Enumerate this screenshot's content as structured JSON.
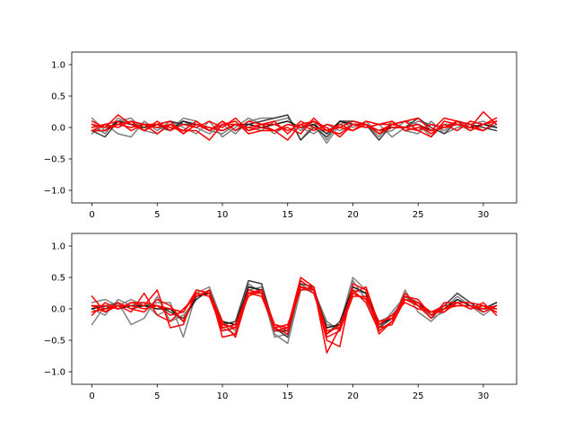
{
  "chart_data": [
    {
      "type": "line",
      "xlim": [
        -1.55,
        32.55
      ],
      "ylim": [
        -1.2,
        1.2
      ],
      "x_ticks": [
        0,
        5,
        10,
        15,
        20,
        25,
        30
      ],
      "x_tick_labels": [
        "0",
        "5",
        "10",
        "15",
        "20",
        "25",
        "30"
      ],
      "y_ticks": [
        -1.0,
        -0.5,
        0.0,
        0.5,
        1.0
      ],
      "y_tick_labels": [
        "−1.0",
        "−0.5",
        "0.0",
        "0.5",
        "1.0"
      ],
      "grid": false,
      "x": [
        0,
        1,
        2,
        3,
        4,
        5,
        6,
        7,
        8,
        9,
        10,
        11,
        12,
        13,
        14,
        15,
        16,
        17,
        18,
        19,
        20,
        21,
        22,
        23,
        24,
        25,
        26,
        27,
        28,
        29,
        30,
        31
      ],
      "series": [
        {
          "color": "#808080",
          "values": [
            0.15,
            -0.05,
            0.1,
            0.15,
            -0.05,
            -0.1,
            0.05,
            0.1,
            0.0,
            -0.1,
            0.05,
            -0.1,
            0.1,
            0.15,
            0.15,
            0.2,
            -0.2,
            0.05,
            -0.25,
            0.05,
            0.1,
            0.05,
            -0.15,
            0.1,
            -0.05,
            -0.1,
            0.1,
            -0.1,
            0.0,
            0.05,
            0.1,
            0.0
          ]
        },
        {
          "color": "#808080",
          "values": [
            0.05,
            -0.1,
            0.15,
            0.05,
            0.05,
            0.0,
            -0.05,
            0.15,
            0.1,
            -0.05,
            -0.1,
            0.05,
            0.0,
            -0.05,
            0.1,
            0.15,
            -0.05,
            0.1,
            -0.2,
            0.1,
            0.0,
            0.1,
            -0.1,
            -0.05,
            0.1,
            0.05,
            -0.15,
            0.05,
            0.05,
            -0.05,
            0.05,
            0.0
          ]
        },
        {
          "color": "#808080",
          "values": [
            -0.1,
            0.05,
            -0.1,
            -0.15,
            0.1,
            -0.05,
            0.1,
            0.0,
            -0.1,
            0.1,
            -0.15,
            0.0,
            0.15,
            0.05,
            -0.1,
            0.05,
            0.0,
            -0.1,
            0.05,
            -0.05,
            0.05,
            0.0,
            0.05,
            -0.15,
            0.0,
            0.1,
            0.05,
            -0.05,
            0.1,
            0.0,
            -0.05,
            0.05
          ]
        },
        {
          "color": "#404040",
          "values": [
            -0.05,
            -0.15,
            0.1,
            0.05,
            -0.05,
            0.05,
            0.1,
            0.05,
            0.05,
            -0.05,
            0.1,
            -0.05,
            0.05,
            0.1,
            0.15,
            0.2,
            -0.2,
            0.0,
            -0.15,
            0.1,
            0.1,
            0.05,
            -0.2,
            0.05,
            0.0,
            0.15,
            0.0,
            -0.1,
            0.1,
            0.05,
            0.0,
            -0.05
          ]
        },
        {
          "color": "#1a1a1a",
          "values": [
            -0.05,
            -0.05,
            0.1,
            0.05,
            0.0,
            0.05,
            -0.05,
            0.1,
            0.05,
            0.0,
            -0.05,
            0.05,
            0.05,
            0.0,
            0.05,
            0.1,
            0.0,
            0.05,
            -0.1,
            0.1,
            0.05,
            0.05,
            -0.05,
            0.0,
            0.0,
            0.05,
            -0.05,
            0.0,
            0.05,
            0.0,
            0.05,
            0.0
          ]
        },
        {
          "color": "#ff0000",
          "values": [
            0.1,
            0.0,
            0.2,
            0.05,
            -0.05,
            0.1,
            -0.05,
            0.05,
            0.0,
            0.1,
            0.0,
            0.15,
            -0.05,
            0.05,
            -0.05,
            0.0,
            -0.1,
            0.15,
            -0.05,
            0.0,
            -0.05,
            0.1,
            0.05,
            0.05,
            0.1,
            -0.05,
            -0.15,
            0.1,
            0.05,
            0.0,
            0.25,
            0.05
          ]
        },
        {
          "color": "#ff0000",
          "values": [
            -0.05,
            0.05,
            0.1,
            -0.05,
            0.05,
            0.05,
            0.1,
            -0.1,
            0.05,
            -0.05,
            0.1,
            -0.05,
            0.1,
            0.05,
            0.1,
            -0.1,
            0.1,
            0.0,
            -0.05,
            0.05,
            -0.05,
            0.05,
            -0.1,
            0.05,
            0.1,
            0.15,
            -0.05,
            0.15,
            0.1,
            0.05,
            -0.05,
            0.1
          ]
        },
        {
          "color": "#ff0000",
          "values": [
            0.0,
            0.05,
            0.0,
            0.1,
            0.05,
            -0.1,
            0.05,
            -0.05,
            0.1,
            -0.05,
            0.05,
            0.1,
            -0.1,
            -0.05,
            -0.05,
            -0.2,
            0.05,
            0.1,
            0.0,
            -0.15,
            0.05,
            0.0,
            0.05,
            0.1,
            -0.05,
            0.0,
            -0.05,
            0.0,
            0.1,
            -0.05,
            0.05,
            0.15
          ]
        },
        {
          "color": "#ff0000",
          "values": [
            -0.05,
            -0.05,
            0.05,
            0.1,
            -0.05,
            0.05,
            0.0,
            -0.05,
            -0.05,
            -0.2,
            0.05,
            0.05,
            -0.05,
            0.0,
            -0.05,
            0.05,
            0.0,
            0.1,
            -0.05,
            -0.1,
            0.05,
            0.05,
            -0.1,
            0.0,
            0.0,
            0.05,
            -0.1,
            0.05,
            -0.05,
            0.1,
            0.05,
            0.1
          ]
        },
        {
          "color": "#ff0000",
          "values": [
            0.05,
            0.0,
            0.05,
            0.0,
            0.05,
            0.0,
            0.05,
            -0.1,
            0.05,
            0.0,
            -0.05,
            0.05,
            0.0,
            0.05,
            0.05,
            -0.05,
            0.05,
            -0.05,
            0.05,
            0.0,
            0.1,
            0.05,
            -0.05,
            0.05,
            0.0,
            -0.05,
            0.05,
            0.0,
            0.05,
            0.0,
            -0.05,
            0.1
          ]
        }
      ]
    },
    {
      "type": "line",
      "xlim": [
        -1.55,
        32.55
      ],
      "ylim": [
        -1.2,
        1.2
      ],
      "x_ticks": [
        0,
        5,
        10,
        15,
        20,
        25,
        30
      ],
      "x_tick_labels": [
        "0",
        "5",
        "10",
        "15",
        "20",
        "25",
        "30"
      ],
      "y_ticks": [
        -1.0,
        -0.5,
        0.0,
        0.5,
        1.0
      ],
      "y_tick_labels": [
        "−1.0",
        "−0.5",
        "0.0",
        "0.5",
        "1.0"
      ],
      "grid": false,
      "x": [
        0,
        1,
        2,
        3,
        4,
        5,
        6,
        7,
        8,
        9,
        10,
        11,
        12,
        13,
        14,
        15,
        16,
        17,
        18,
        19,
        20,
        21,
        22,
        23,
        24,
        25,
        26,
        27,
        28,
        29,
        30,
        31
      ],
      "series": [
        {
          "color": "#808080",
          "values": [
            0.1,
            0.15,
            0.05,
            0.15,
            0.05,
            0.1,
            0.1,
            -0.45,
            0.25,
            0.35,
            -0.2,
            -0.35,
            0.4,
            0.25,
            -0.4,
            -0.55,
            0.3,
            0.3,
            -0.3,
            -0.25,
            0.5,
            0.3,
            -0.35,
            -0.2,
            0.3,
            -0.05,
            -0.2,
            0.0,
            0.2,
            0.05,
            -0.1,
            0.05
          ]
        },
        {
          "color": "#808080",
          "values": [
            -0.25,
            0.05,
            0.1,
            -0.25,
            -0.15,
            0.2,
            -0.2,
            -0.1,
            0.15,
            0.3,
            -0.3,
            -0.4,
            0.35,
            0.3,
            -0.45,
            -0.4,
            0.4,
            0.25,
            -0.25,
            -0.3,
            0.45,
            0.15,
            -0.3,
            -0.05,
            0.2,
            0.05,
            -0.15,
            0.05,
            0.1,
            0.0,
            0.05,
            -0.05
          ]
        },
        {
          "color": "#808080",
          "values": [
            0.0,
            -0.1,
            0.15,
            0.05,
            0.1,
            -0.1,
            0.0,
            -0.2,
            0.2,
            0.25,
            -0.25,
            -0.3,
            0.3,
            0.35,
            -0.35,
            -0.3,
            0.35,
            0.3,
            -0.2,
            -0.35,
            0.3,
            0.25,
            -0.2,
            -0.1,
            0.15,
            0.1,
            -0.15,
            -0.05,
            0.15,
            0.05,
            0.0,
            0.0
          ]
        },
        {
          "color": "#404040",
          "values": [
            0.05,
            0.0,
            0.1,
            0.0,
            0.05,
            0.05,
            -0.05,
            -0.15,
            0.15,
            0.3,
            -0.25,
            -0.2,
            0.45,
            0.4,
            -0.3,
            -0.45,
            0.4,
            0.35,
            -0.4,
            -0.2,
            0.35,
            0.25,
            -0.3,
            -0.15,
            0.2,
            0.1,
            -0.1,
            0.05,
            0.25,
            0.1,
            -0.05,
            0.05
          ]
        },
        {
          "color": "#1a1a1a",
          "values": [
            0.0,
            0.05,
            0.0,
            0.05,
            0.05,
            0.0,
            0.0,
            -0.2,
            0.2,
            0.25,
            -0.2,
            -0.25,
            0.35,
            0.3,
            -0.35,
            -0.35,
            0.35,
            0.3,
            -0.3,
            -0.25,
            0.35,
            0.25,
            -0.25,
            -0.15,
            0.15,
            0.1,
            -0.1,
            0.0,
            0.15,
            0.05,
            0.0,
            0.1
          ]
        },
        {
          "color": "#ff0000",
          "values": [
            0.2,
            -0.05,
            0.05,
            -0.05,
            0.25,
            -0.1,
            -0.2,
            0.0,
            0.2,
            0.3,
            -0.45,
            -0.4,
            0.25,
            0.3,
            -0.35,
            -0.3,
            0.5,
            0.35,
            -0.7,
            -0.3,
            0.3,
            0.1,
            -0.35,
            -0.2,
            0.25,
            0.05,
            -0.15,
            0.1,
            0.1,
            0.1,
            0.05,
            -0.05
          ]
        },
        {
          "color": "#ff0000",
          "values": [
            -0.1,
            0.1,
            0.0,
            0.1,
            0.05,
            0.3,
            -0.3,
            -0.25,
            0.3,
            0.25,
            -0.2,
            -0.45,
            0.25,
            0.25,
            -0.3,
            -0.4,
            0.45,
            0.3,
            -0.5,
            -0.6,
            0.4,
            0.3,
            -0.4,
            -0.2,
            0.2,
            0.15,
            -0.1,
            0.0,
            0.1,
            0.0,
            0.1,
            -0.1
          ]
        },
        {
          "color": "#ff0000",
          "values": [
            0.05,
            -0.05,
            0.1,
            0.0,
            -0.05,
            0.15,
            0.05,
            -0.2,
            0.25,
            0.2,
            -0.35,
            -0.3,
            0.2,
            0.3,
            -0.25,
            -0.35,
            0.35,
            0.25,
            -0.4,
            -0.25,
            0.25,
            0.35,
            -0.25,
            -0.1,
            0.1,
            0.0,
            -0.05,
            0.05,
            0.05,
            0.05,
            0.0,
            0.05
          ]
        },
        {
          "color": "#ff0000",
          "values": [
            -0.05,
            0.0,
            0.05,
            0.05,
            0.0,
            0.05,
            -0.1,
            -0.05,
            0.3,
            0.25,
            -0.3,
            -0.25,
            0.25,
            0.2,
            -0.3,
            -0.25,
            0.3,
            0.35,
            -0.45,
            -0.35,
            0.2,
            0.2,
            -0.3,
            -0.25,
            0.15,
            0.1,
            -0.05,
            -0.05,
            0.1,
            0.0,
            0.05,
            0.0
          ]
        },
        {
          "color": "#ff0000",
          "values": [
            0.05,
            0.05,
            0.0,
            0.1,
            0.1,
            0.05,
            0.0,
            -0.05,
            0.25,
            0.2,
            -0.25,
            -0.3,
            0.3,
            0.25,
            -0.25,
            -0.3,
            0.35,
            0.3,
            -0.35,
            -0.3,
            0.25,
            0.15,
            -0.2,
            -0.15,
            0.15,
            0.05,
            -0.05,
            0.0,
            0.05,
            0.05,
            -0.05,
            0.05
          ]
        }
      ]
    }
  ]
}
